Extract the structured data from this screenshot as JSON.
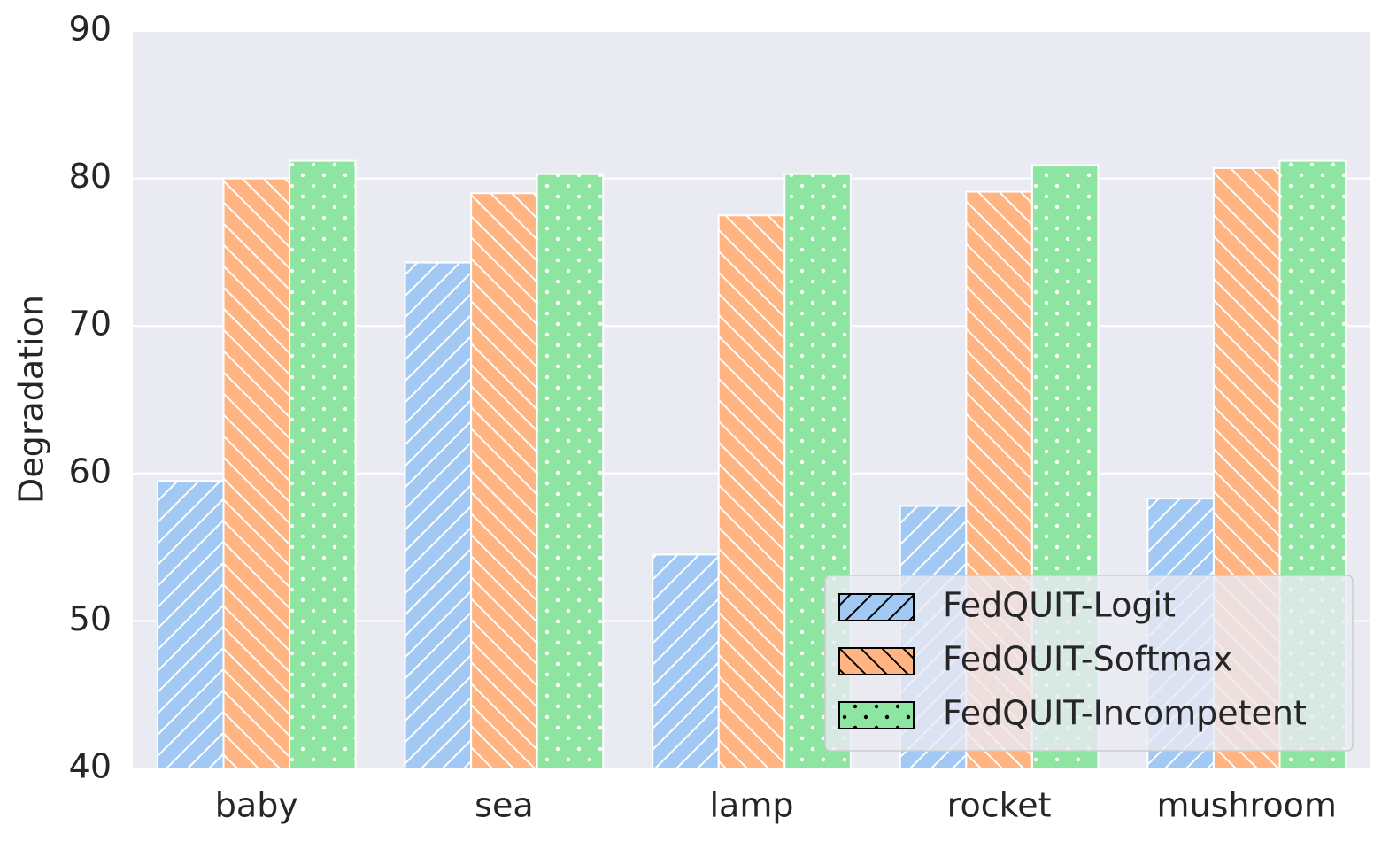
{
  "chart_data": {
    "type": "bar",
    "y_label": "Degradation",
    "categories": [
      "baby",
      "sea",
      "lamp",
      "rocket",
      "mushroom"
    ],
    "series": [
      {
        "name": "FedQUIT-Logit",
        "color": "#a1c9f4",
        "hatch": "/",
        "values": [
          59.5,
          74.3,
          54.5,
          57.8,
          58.3
        ]
      },
      {
        "name": "FedQUIT-Softmax",
        "color": "#ffb482",
        "hatch": "\\",
        "values": [
          80.0,
          79.0,
          77.5,
          79.1,
          80.7
        ]
      },
      {
        "name": "FedQUIT-Incompetent",
        "color": "#8de5a1",
        "hatch": ".",
        "values": [
          81.2,
          80.3,
          80.3,
          80.9,
          81.2
        ]
      }
    ],
    "ylim": [
      40,
      90
    ],
    "yticks": [
      40,
      50,
      60,
      70,
      80,
      90
    ],
    "grid": true,
    "legend": "lower right"
  }
}
